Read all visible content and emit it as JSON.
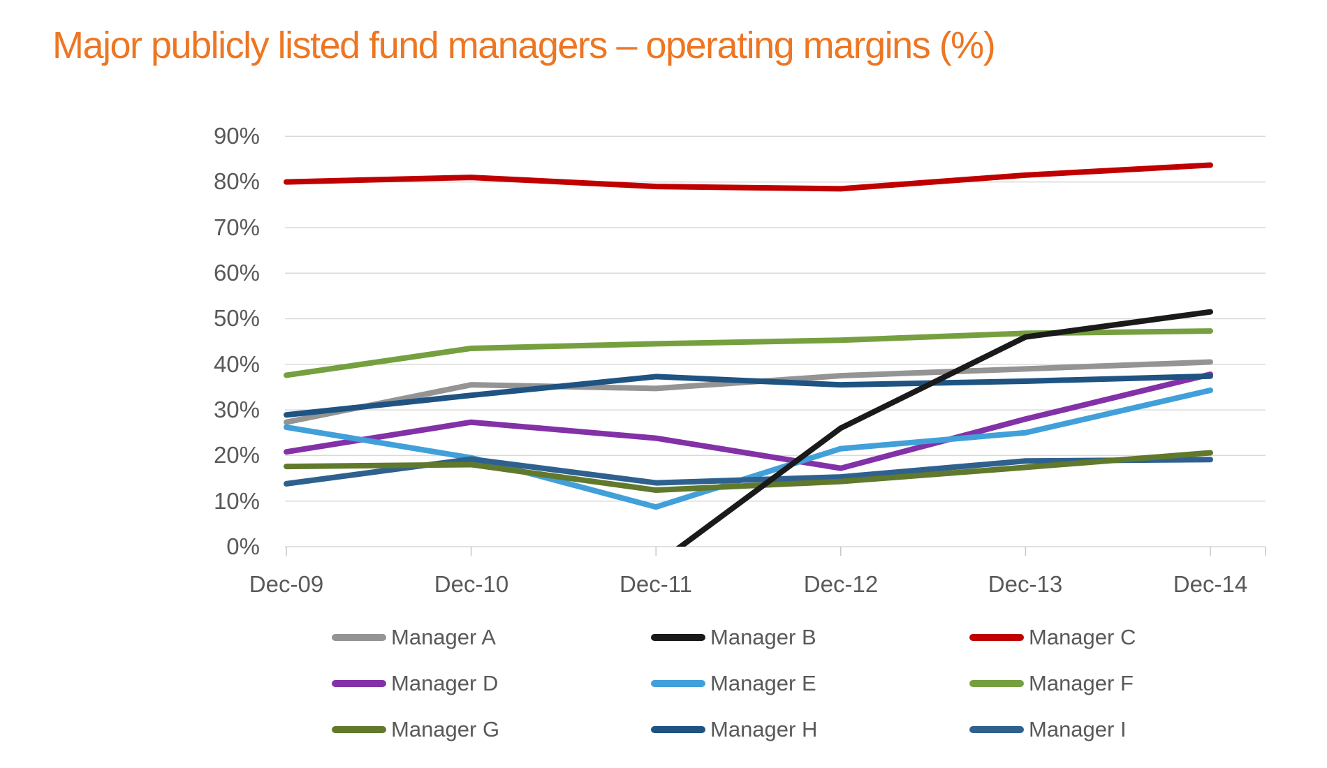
{
  "chart_data": {
    "type": "line",
    "title": "Major publicly listed fund managers – operating margins (%)",
    "title_color": "#ED7623",
    "categories": [
      "Dec-09",
      "Dec-10",
      "Dec-11",
      "Dec-12",
      "Dec-13",
      "Dec-14"
    ],
    "y_tick_labels": [
      "0%",
      "10%",
      "20%",
      "30%",
      "40%",
      "50%",
      "60%",
      "70%",
      "80%",
      "90%"
    ],
    "ylim": [
      0,
      90
    ],
    "y_tick_step": 10,
    "grid": "horizontal-only",
    "gridline_color": "#D9D9D9",
    "axis_label_color": "#595959",
    "legend_position": "bottom",
    "series": [
      {
        "name": "Manager A",
        "color": "#949494",
        "values": [
          27.3,
          35.5,
          34.7,
          37.5,
          39.0,
          40.5
        ]
      },
      {
        "name": "Manager B",
        "color": "#1A1A1A",
        "values": [
          null,
          null,
          -4.0,
          26.0,
          46.0,
          51.5
        ]
      },
      {
        "name": "Manager C",
        "color": "#C00000",
        "values": [
          80.0,
          81.0,
          79.0,
          78.5,
          81.5,
          83.7
        ]
      },
      {
        "name": "Manager D",
        "color": "#8331A7",
        "values": [
          20.8,
          27.3,
          23.8,
          17.2,
          28.0,
          37.8
        ]
      },
      {
        "name": "Manager E",
        "color": "#41A0DA",
        "values": [
          26.2,
          19.5,
          8.7,
          21.5,
          25.0,
          34.3
        ]
      },
      {
        "name": "Manager F",
        "color": "#76A040",
        "values": [
          37.6,
          43.5,
          44.5,
          45.3,
          46.8,
          47.3
        ]
      },
      {
        "name": "Manager G",
        "color": "#60792C",
        "values": [
          17.6,
          18.0,
          12.4,
          14.3,
          17.4,
          20.6
        ]
      },
      {
        "name": "Manager H",
        "color": "#1F5382",
        "values": [
          28.9,
          33.2,
          37.3,
          35.5,
          36.3,
          37.4
        ]
      },
      {
        "name": "Manager I",
        "color": "#2F618F",
        "values": [
          13.8,
          19.2,
          14.0,
          15.3,
          18.8,
          19.1
        ]
      }
    ],
    "draw_order": [
      "Manager A",
      "Manager C",
      "Manager D",
      "Manager E",
      "Manager F",
      "Manager I",
      "Manager G",
      "Manager H",
      "Manager B"
    ]
  }
}
